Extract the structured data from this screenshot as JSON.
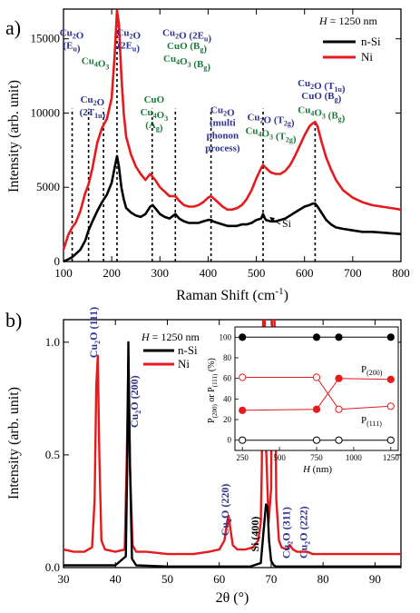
{
  "colors": {
    "red": "#e41a1c",
    "black": "#000000",
    "blue": "#2e3192",
    "green": "#1a7a3a",
    "axis": "#000000"
  },
  "panel_a": {
    "letter": "a)",
    "legend_title": "H = 1250 nm",
    "legend_title_var": "H",
    "legend_title_rest": " = 1250 nm",
    "series_labels": [
      "n-Si",
      "Ni"
    ],
    "si_label": "Si",
    "annotations": [
      {
        "lines": [
          {
            "t": "Cu",
            "s": "2",
            "r": "O"
          },
          {
            "t": "(E",
            "s": "u",
            "r": ")"
          }
        ],
        "color": "blue",
        "x": 117,
        "y": 15200
      },
      {
        "lines": [
          {
            "t": "Cu",
            "s": "4",
            "r": "O",
            "s2": "3"
          }
        ],
        "color": "green",
        "x": 166,
        "y": 13300
      },
      {
        "lines": [
          {
            "t": "Cu",
            "s": "2",
            "r": "O"
          },
          {
            "t": "(2T",
            "s": "1u",
            "r": ")"
          }
        ],
        "color": "blue",
        "x": 160,
        "y": 10700
      },
      {
        "lines": [
          {
            "t": "Cu",
            "s": "2",
            "r": "O"
          },
          {
            "t": "(2E",
            "s": "u",
            "r": ")"
          }
        ],
        "color": "blue",
        "x": 235,
        "y": 15200
      },
      {
        "lines": [
          {
            "t": "CuO",
            "s": "",
            "r": ""
          },
          {
            "t": "Cu",
            "s": "4",
            "r": "O",
            "s2": "3"
          },
          {
            "t": "(A",
            "s": "g",
            "r": ")"
          }
        ],
        "color": "green",
        "x": 288,
        "y": 10700
      },
      {
        "lines": [
          {
            "t": "Cu",
            "s": "2",
            "r": "O (2E",
            "s2": "u",
            "r2": ")"
          }
        ],
        "color": "blue",
        "x": 356,
        "y": 15200
      },
      {
        "lines": [
          {
            "t": "CuO (B",
            "s": "g",
            "r": ")"
          },
          {
            "t": "Cu",
            "s": "4",
            "r": "O",
            "s2": "3",
            "r2": " (B",
            "s3": "g",
            "r3": ")"
          }
        ],
        "color": "green",
        "x": 356,
        "y": 14300
      },
      {
        "lines": [
          {
            "t": "Cu",
            "s": "2",
            "r": "O"
          },
          {
            "t": "(multi",
            "s": "",
            "r": ""
          },
          {
            "t": "phonon",
            "s": "",
            "r": ""
          },
          {
            "t": "process)",
            "s": "",
            "r": ""
          }
        ],
        "color": "blue",
        "x": 430,
        "y": 10000
      },
      {
        "lines": [
          {
            "t": "Cu",
            "s": "2",
            "r": "O (T",
            "s2": "2g",
            "r2": ")"
          }
        ],
        "color": "blue",
        "x": 530,
        "y": 9500
      },
      {
        "lines": [
          {
            "t": "Cu",
            "s": "4",
            "r": "O",
            "s2": "3",
            "r2": " (T",
            "s3": "2g",
            "r3": ")"
          }
        ],
        "color": "green",
        "x": 530,
        "y": 8600
      },
      {
        "lines": [
          {
            "t": "Cu",
            "s": "2",
            "r": "O (T",
            "s2": "1u",
            "r2": ")"
          },
          {
            "t": "CuO (B",
            "s": "g",
            "r": ")"
          }
        ],
        "color": "blue",
        "x": 635,
        "y": 11800
      },
      {
        "lines": [
          {
            "t": "Cu",
            "s": "4",
            "r": "O",
            "s2": "3",
            "r2": " (B",
            "s3": "g",
            "r3": ")"
          }
        ],
        "color": "green",
        "x": 635,
        "y": 10000
      }
    ]
  },
  "panel_b": {
    "letter": "b)",
    "legend_title": "H = 1250 nm",
    "legend_title_var": "H",
    "legend_title_rest": " = 1250 nm",
    "series_labels": [
      "n-Si",
      "Ni"
    ],
    "peak_labels": [
      {
        "text": "Cu2O (111)",
        "base": "Cu",
        "sub": "2",
        "rest": "O (111)",
        "color": "blue",
        "x": 36.5,
        "y": 0.93
      },
      {
        "text": "Cu2O (200)",
        "base": "Cu",
        "sub": "2",
        "rest": "O (200)",
        "color": "blue",
        "x": 44.3,
        "y": 0.62
      },
      {
        "text": "Cu2O (220)",
        "base": "Cu",
        "sub": "2",
        "rest": "O (220)",
        "color": "blue",
        "x": 61.8,
        "y": 0.14
      },
      {
        "text": "Si (400)",
        "base": "Si (400)",
        "sub": "",
        "rest": "",
        "color": "black",
        "x": 67.6,
        "y": 0.07
      },
      {
        "text": "Cu2O (311)",
        "base": "Cu",
        "sub": "2",
        "rest": "O (311)",
        "color": "blue",
        "x": 73.6,
        "y": 0.04
      },
      {
        "text": "Cu2O (222)",
        "base": "Cu",
        "sub": "2",
        "rest": "O (222)",
        "color": "blue",
        "x": 76.9,
        "y": 0.04
      }
    ]
  },
  "inset": {
    "ylabel_base": "P",
    "ylabel_sub1": "(200)",
    "ylabel_mid": " or P",
    "ylabel_sub2": "(111)",
    "ylabel_unit": " (%)",
    "xlabel_var": "H",
    "xlabel_unit": " (nm)",
    "label_p200": "P",
    "label_p200_sub": "(200)",
    "label_p111": "P",
    "label_p111_sub": "(111)",
    "xticks": [
      "250",
      "500",
      "750",
      "1000",
      "1250"
    ],
    "yticks": [
      "0",
      "20",
      "40",
      "60",
      "80",
      "100"
    ]
  },
  "chart_data": [
    {
      "type": "line",
      "panel": "a)",
      "xlabel": "Raman Shift (cm-1)",
      "xlabel_base": "Raman Shift (cm",
      "xlabel_sup": "-1",
      "xlabel_end": ")",
      "ylabel": "Intensity (arb. unit)",
      "xlim": [
        100,
        800
      ],
      "ylim": [
        0,
        17000
      ],
      "xticks": [
        100,
        200,
        300,
        400,
        500,
        600,
        700,
        800
      ],
      "yticks": [
        0,
        5000,
        10000,
        15000
      ],
      "grid": false,
      "legend": "top-right",
      "markers_dashed_x": [
        118,
        152,
        183,
        211,
        284,
        332,
        406,
        514,
        622
      ],
      "series": [
        {
          "name": "Ni",
          "color": "red",
          "x": [
            100,
            110,
            118,
            125,
            135,
            145,
            152,
            160,
            170,
            180,
            190,
            200,
            206,
            211,
            215,
            220,
            225,
            230,
            240,
            250,
            260,
            270,
            280,
            285,
            290,
            300,
            310,
            320,
            332,
            340,
            350,
            360,
            370,
            380,
            390,
            400,
            406,
            410,
            420,
            430,
            440,
            450,
            460,
            470,
            480,
            490,
            500,
            510,
            514,
            520,
            530,
            540,
            550,
            560,
            570,
            580,
            590,
            600,
            610,
            617,
            622,
            627,
            635,
            645,
            655,
            665,
            680,
            700,
            720,
            740,
            760,
            780,
            800
          ],
          "y": [
            800,
            1800,
            2300,
            2600,
            3400,
            4600,
            5200,
            6300,
            8000,
            9000,
            9600,
            11000,
            13800,
            16900,
            16000,
            12500,
            10000,
            8400,
            7200,
            6400,
            5900,
            5500,
            5900,
            5700,
            5500,
            5000,
            4700,
            4400,
            4400,
            4100,
            3800,
            3700,
            3700,
            3800,
            4000,
            4300,
            4400,
            4300,
            4000,
            3700,
            3500,
            3500,
            3600,
            3800,
            4200,
            4800,
            5600,
            6300,
            6500,
            6300,
            6000,
            5900,
            5900,
            6100,
            6500,
            7100,
            7800,
            8500,
            9100,
            9300,
            9400,
            9100,
            8100,
            7000,
            6200,
            5500,
            4800,
            4300,
            4000,
            3800,
            3700,
            3600,
            3500
          ]
        },
        {
          "name": "n-Si",
          "color": "black",
          "x": [
            100,
            110,
            118,
            125,
            135,
            145,
            152,
            160,
            170,
            180,
            190,
            200,
            206,
            211,
            215,
            220,
            225,
            230,
            240,
            250,
            260,
            270,
            280,
            285,
            290,
            300,
            310,
            320,
            332,
            340,
            350,
            360,
            370,
            380,
            390,
            400,
            406,
            410,
            420,
            430,
            440,
            450,
            460,
            470,
            480,
            490,
            500,
            510,
            514,
            518,
            520,
            530,
            540,
            550,
            560,
            570,
            580,
            590,
            600,
            610,
            617,
            622,
            627,
            635,
            645,
            655,
            665,
            680,
            700,
            720,
            740,
            760,
            780,
            800
          ],
          "y": [
            0,
            150,
            300,
            500,
            800,
            1400,
            2100,
            2700,
            3400,
            4000,
            4500,
            5300,
            6300,
            7100,
            6400,
            5000,
            4200,
            3600,
            3300,
            3100,
            3000,
            3200,
            3700,
            3800,
            3600,
            3200,
            3000,
            2900,
            3200,
            2900,
            2700,
            2600,
            2600,
            2600,
            2700,
            2800,
            2800,
            2700,
            2600,
            2500,
            2400,
            2400,
            2400,
            2500,
            2500,
            2600,
            2800,
            2900,
            3200,
            2900,
            2800,
            2700,
            2700,
            2800,
            2900,
            3100,
            3300,
            3500,
            3700,
            3800,
            3900,
            3900,
            3700,
            3300,
            2800,
            2500,
            2300,
            2200,
            2100,
            2000,
            2000,
            1950,
            1900,
            1850
          ]
        }
      ]
    },
    {
      "type": "line",
      "panel": "b)",
      "xlabel": "2θ (°)",
      "ylabel": "Intensity (arb. unit)",
      "xlim": [
        30,
        95
      ],
      "ylim": [
        0,
        1.1
      ],
      "xticks": [
        30,
        40,
        50,
        60,
        70,
        80,
        90
      ],
      "yticks": [
        0.0,
        0.5,
        1.0
      ],
      "ytick_labels": [
        "0.0",
        "0.5",
        "1.0"
      ],
      "grid": false,
      "legend": "top-left",
      "series": [
        {
          "name": "n-Si",
          "color": "black",
          "x": [
            30,
            36,
            40,
            42.0,
            42.3,
            42.5,
            42.8,
            43.2,
            44,
            50,
            60,
            66,
            68.0,
            68.5,
            69.0,
            69.3,
            69.6,
            70.0,
            70.5,
            71,
            75,
            80,
            90,
            95
          ],
          "y": [
            0.01,
            0.01,
            0.01,
            0.05,
            0.5,
            1.0,
            0.45,
            0.04,
            0.01,
            0.005,
            0.005,
            0.005,
            0.02,
            0.15,
            0.28,
            0.27,
            0.12,
            0.03,
            0.01,
            0.005,
            0.005,
            0.005,
            0.005,
            0.005
          ]
        },
        {
          "name": "Ni",
          "color": "red",
          "x": [
            30,
            32,
            34,
            35.5,
            36.0,
            36.3,
            36.6,
            36.9,
            37.3,
            38,
            40,
            41.8,
            42.2,
            42.5,
            42.8,
            43.3,
            44,
            46,
            50,
            55,
            58,
            60,
            61.0,
            61.5,
            61.8,
            62.1,
            62.6,
            63.5,
            65,
            66.5,
            67.5,
            68.0,
            68.2,
            68.5,
            68.7,
            69.0,
            69.5,
            70.0,
            70.2,
            70.6,
            71,
            71.5,
            72,
            73,
            73.6,
            74.2,
            75,
            76,
            77,
            78,
            80,
            83,
            86,
            89,
            92,
            95
          ],
          "y": [
            0.08,
            0.07,
            0.07,
            0.09,
            0.3,
            0.8,
            0.94,
            0.5,
            0.12,
            0.08,
            0.07,
            0.08,
            0.5,
            0.93,
            0.45,
            0.1,
            0.07,
            0.07,
            0.06,
            0.06,
            0.07,
            0.08,
            0.12,
            0.2,
            0.23,
            0.18,
            0.1,
            0.08,
            0.08,
            0.09,
            0.12,
            0.2,
            0.45,
            1.2,
            1.2,
            0.55,
            0.2,
            0.35,
            1.2,
            1.2,
            0.3,
            0.12,
            0.09,
            0.08,
            0.1,
            0.08,
            0.07,
            0.07,
            0.07,
            0.06,
            0.06,
            0.06,
            0.06,
            0.06,
            0.06,
            0.06
          ]
        }
      ]
    },
    {
      "type": "line",
      "panel": "inset",
      "xlabel": "H (nm)",
      "ylabel": "P(200) or P(111) (%)",
      "xlim": [
        200,
        1300
      ],
      "ylim": [
        -10,
        110
      ],
      "xticks": [
        250,
        500,
        750,
        1000,
        1250
      ],
      "yticks": [
        0,
        20,
        40,
        60,
        80,
        100
      ],
      "grid": false,
      "series": [
        {
          "name": "n-Si P(200)",
          "color": "black",
          "marker": "filled",
          "x": [
            250,
            750,
            900,
            1250
          ],
          "y": [
            100,
            100,
            100,
            100
          ]
        },
        {
          "name": "n-Si P(111)",
          "color": "black",
          "marker": "open",
          "x": [
            250,
            750,
            900,
            1250
          ],
          "y": [
            0,
            0,
            0,
            0
          ]
        },
        {
          "name": "Ni P(200)",
          "color": "red",
          "marker": "filled",
          "x": [
            250,
            750,
            900,
            1250
          ],
          "y": [
            29,
            30,
            60,
            59
          ]
        },
        {
          "name": "Ni P(111)",
          "color": "red",
          "marker": "open",
          "x": [
            250,
            750,
            900,
            1250
          ],
          "y": [
            61,
            61,
            30,
            33
          ]
        }
      ]
    }
  ]
}
